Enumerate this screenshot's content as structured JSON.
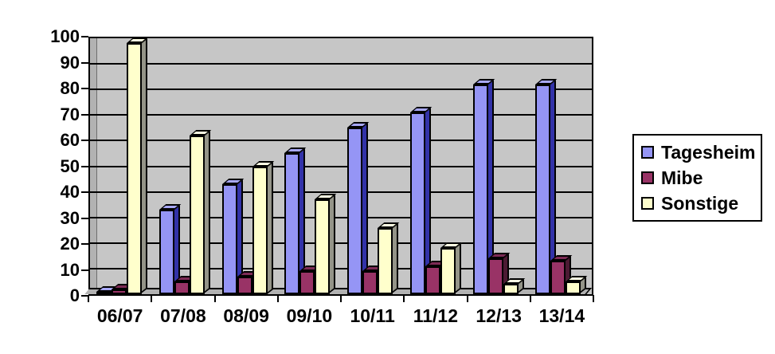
{
  "chart_data": {
    "type": "bar",
    "style": "3d-clustered",
    "title": "",
    "xlabel": "",
    "ylabel": "",
    "categories": [
      "06/07",
      "07/08",
      "08/09",
      "09/10",
      "10/11",
      "11/12",
      "12/13",
      "13/14"
    ],
    "series": [
      {
        "name": "Tagesheim",
        "values": [
          1,
          33,
          43,
          55,
          65,
          71,
          82,
          82
        ],
        "color": {
          "front": "#9595F5",
          "top": "#A8A8F8",
          "side": "#3232A8"
        }
      },
      {
        "name": "Mibe",
        "values": [
          2,
          5,
          7,
          9,
          9,
          11,
          14,
          13
        ],
        "color": {
          "front": "#993366",
          "top": "#7D2B55",
          "side": "#4C1A33"
        }
      },
      {
        "name": "Sonstige",
        "values": [
          98,
          62,
          50,
          37,
          26,
          18,
          4,
          5
        ],
        "color": {
          "front": "#FFFFCC",
          "top": "#FFFFE4",
          "side": "#949488"
        }
      }
    ],
    "ylim": [
      0,
      100
    ],
    "y_ticks": [
      0,
      10,
      20,
      30,
      40,
      50,
      60,
      70,
      80,
      90,
      100
    ],
    "grid": true,
    "legend_position": "right",
    "plot_bg": "#C6C6C6",
    "wall_color": "#B2B2B2",
    "gridline_color": "#000000"
  }
}
